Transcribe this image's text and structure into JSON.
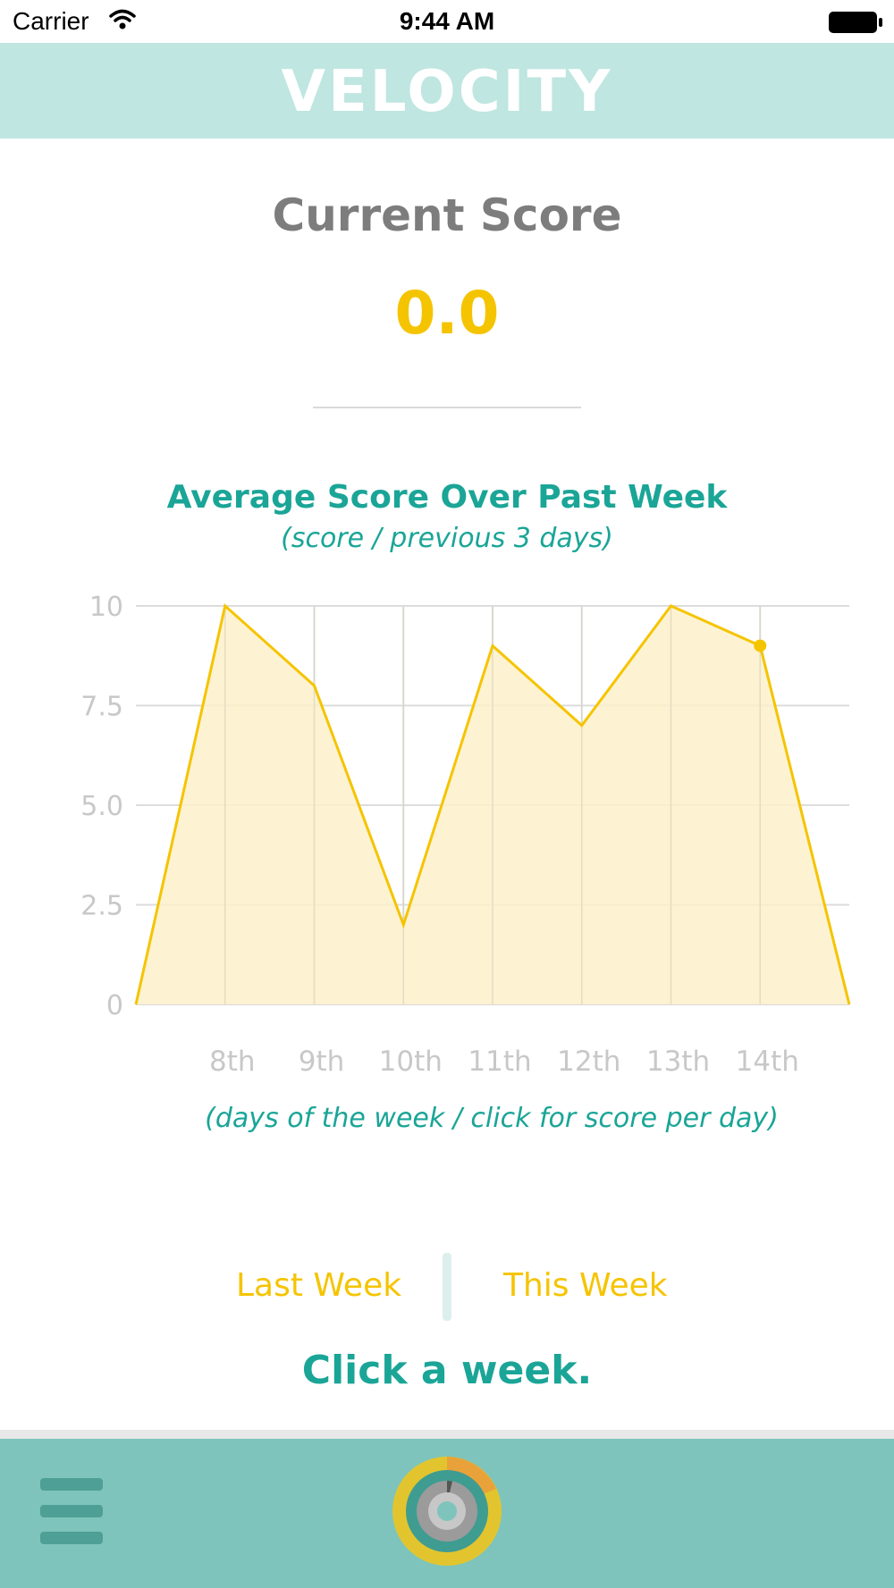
{
  "status_bar": {
    "carrier": "Carrier",
    "time": "9:44 AM"
  },
  "header": {
    "title": "VELOCITY"
  },
  "score": {
    "label": "Current Score",
    "value": "0.0"
  },
  "chart_section": {
    "title": "Average Score Over Past Week",
    "subtitle": "(score / previous 3 days)",
    "caption": "(days of the week / click for score per day)"
  },
  "chart_data": {
    "type": "area",
    "categories": [
      "8th",
      "9th",
      "10th",
      "11th",
      "12th",
      "13th",
      "14th"
    ],
    "values": [
      10,
      8,
      2,
      9,
      7,
      10,
      9
    ],
    "y_ticks": [
      "0",
      "2.5",
      "5.0",
      "7.5",
      "10"
    ],
    "ylim": [
      0,
      10
    ],
    "highlight_index": 6,
    "grid": true,
    "colors": {
      "line": "#f5c400",
      "fill": "#fdf1cb",
      "grid": "#dcdcdc",
      "ticks": "#c8c8c8"
    }
  },
  "weeks": {
    "last": "Last Week",
    "this": "This Week",
    "hint": "Click a week."
  },
  "nav": {
    "menu_icon": "menu-icon",
    "center_icon": "score-ring-icon"
  },
  "colors": {
    "accent": "#1aa597",
    "yellow": "#f5c400",
    "header_bg": "#bfe6e1",
    "bottom_bg": "#7ec4bc"
  }
}
